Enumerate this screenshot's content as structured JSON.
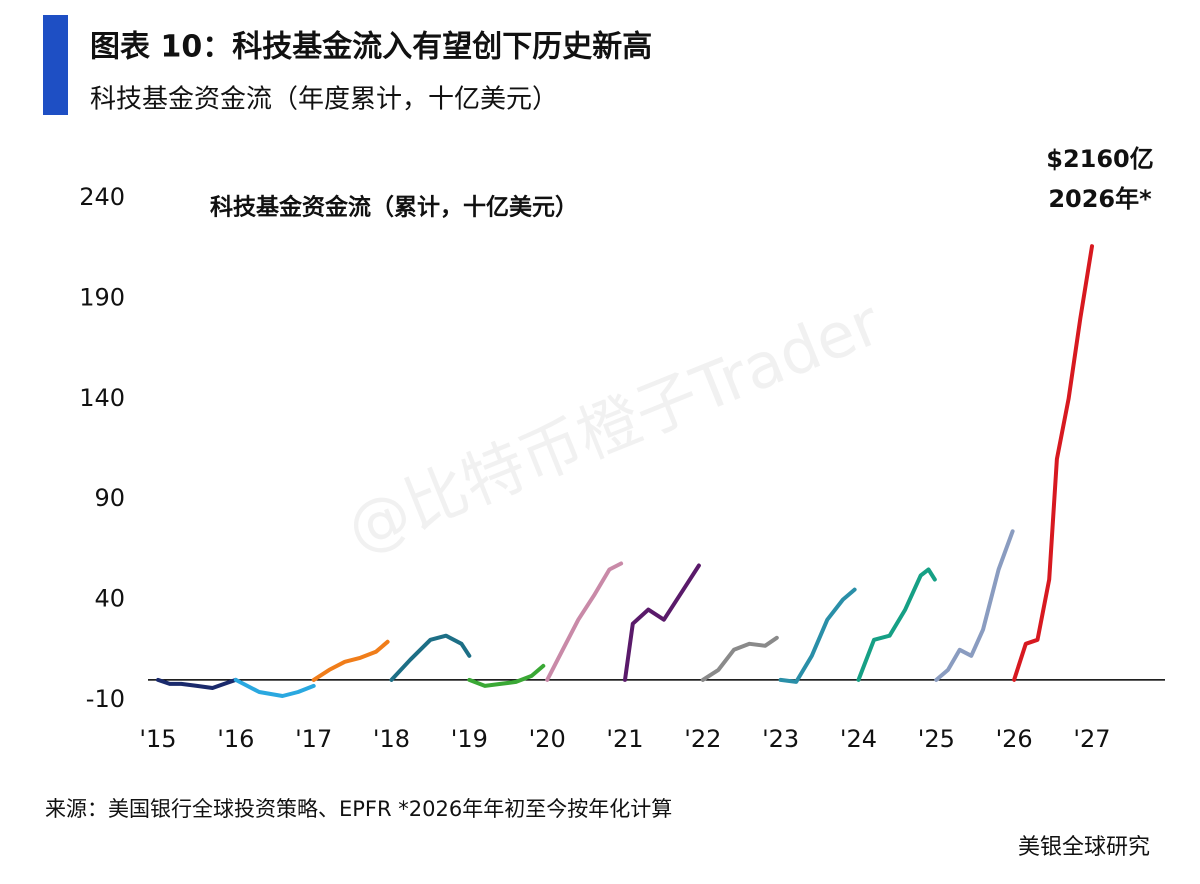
{
  "header": {
    "title": "图表 10：科技基金流入有望创下历史新高",
    "subtitle": "科技基金资金流（年度累计，十亿美元）"
  },
  "chart_data": {
    "type": "line",
    "title": "科技基金资金流（累计，十亿美元）",
    "annotation": [
      "$2160亿",
      "2026年*"
    ],
    "xlim": [
      2015,
      2028
    ],
    "xticks": [
      {
        "value": 2015,
        "label": "'15"
      },
      {
        "value": 2016,
        "label": "'16"
      },
      {
        "value": 2017,
        "label": "'17"
      },
      {
        "value": 2018,
        "label": "'18"
      },
      {
        "value": 2019,
        "label": "'19"
      },
      {
        "value": 2020,
        "label": "'20"
      },
      {
        "value": 2021,
        "label": "'21"
      },
      {
        "value": 2022,
        "label": "'22"
      },
      {
        "value": 2023,
        "label": "'23"
      },
      {
        "value": 2024,
        "label": "'24"
      },
      {
        "value": 2025,
        "label": "'25"
      },
      {
        "value": 2026,
        "label": "'26"
      },
      {
        "value": 2027,
        "label": "'27"
      }
    ],
    "ylim": [
      -10,
      240
    ],
    "yticks": [
      -10,
      40,
      90,
      140,
      190,
      240
    ],
    "series": [
      {
        "color": "#1a2a6c",
        "x": [
          2015,
          2015.15,
          2015.3,
          2015.5,
          2015.7,
          2015.85,
          2016
        ],
        "values": [
          0,
          -2,
          -2,
          -3,
          -4,
          -2,
          0
        ]
      },
      {
        "color": "#2aa8e0",
        "x": [
          2016,
          2016.3,
          2016.6,
          2016.8,
          2017
        ],
        "values": [
          0,
          -6,
          -8,
          -6,
          -3
        ]
      },
      {
        "color": "#f07d1a",
        "x": [
          2017,
          2017.2,
          2017.4,
          2017.6,
          2017.8,
          2017.95
        ],
        "values": [
          0,
          5,
          9,
          11,
          14,
          19
        ]
      },
      {
        "color": "#1d6f86",
        "x": [
          2018,
          2018.24,
          2018.5,
          2018.7,
          2018.9,
          2019
        ],
        "values": [
          0,
          10,
          20,
          22,
          18,
          12
        ]
      },
      {
        "color": "#3aa835",
        "x": [
          2019,
          2019.2,
          2019.4,
          2019.6,
          2019.8,
          2019.95
        ],
        "values": [
          0,
          -3,
          -2,
          -1,
          2,
          7
        ]
      },
      {
        "color": "#c98aa8",
        "x": [
          2020,
          2020.2,
          2020.4,
          2020.6,
          2020.8,
          2020.95
        ],
        "values": [
          0,
          15,
          30,
          42,
          55,
          58
        ]
      },
      {
        "color": "#5a1a6a",
        "x": [
          2021,
          2021.1,
          2021.3,
          2021.5,
          2021.75,
          2021.95
        ],
        "values": [
          0,
          28,
          35,
          30,
          45,
          57
        ]
      },
      {
        "color": "#8a8a8a",
        "x": [
          2022,
          2022.2,
          2022.4,
          2022.6,
          2022.8,
          2022.95
        ],
        "values": [
          0,
          5,
          15,
          18,
          17,
          21
        ]
      },
      {
        "color": "#2a8fa8",
        "x": [
          2023,
          2023.2,
          2023.4,
          2023.6,
          2023.8,
          2023.95
        ],
        "values": [
          0,
          -1,
          12,
          30,
          40,
          45
        ]
      },
      {
        "color": "#16a085",
        "x": [
          2024,
          2024.2,
          2024.4,
          2024.6,
          2024.8,
          2024.9,
          2024.98
        ],
        "values": [
          0,
          20,
          22,
          35,
          52,
          55,
          50
        ]
      },
      {
        "color": "#8a9cc0",
        "x": [
          2025,
          2025.15,
          2025.3,
          2025.45,
          2025.6,
          2025.8,
          2025.98
        ],
        "values": [
          0,
          5,
          15,
          12,
          25,
          55,
          74
        ]
      },
      {
        "color": "#d71920",
        "x": [
          2026,
          2026.15,
          2026.3,
          2026.45,
          2026.55,
          2026.7,
          2026.85,
          2027
        ],
        "values": [
          0,
          18,
          20,
          50,
          110,
          140,
          180,
          216
        ]
      }
    ]
  },
  "watermark": "@比特币橙子Trader",
  "footer": {
    "source": "来源：美国银行全球投资策略、EPFR  *2026年年初至今按年化计算",
    "brand": "美银全球研究"
  }
}
